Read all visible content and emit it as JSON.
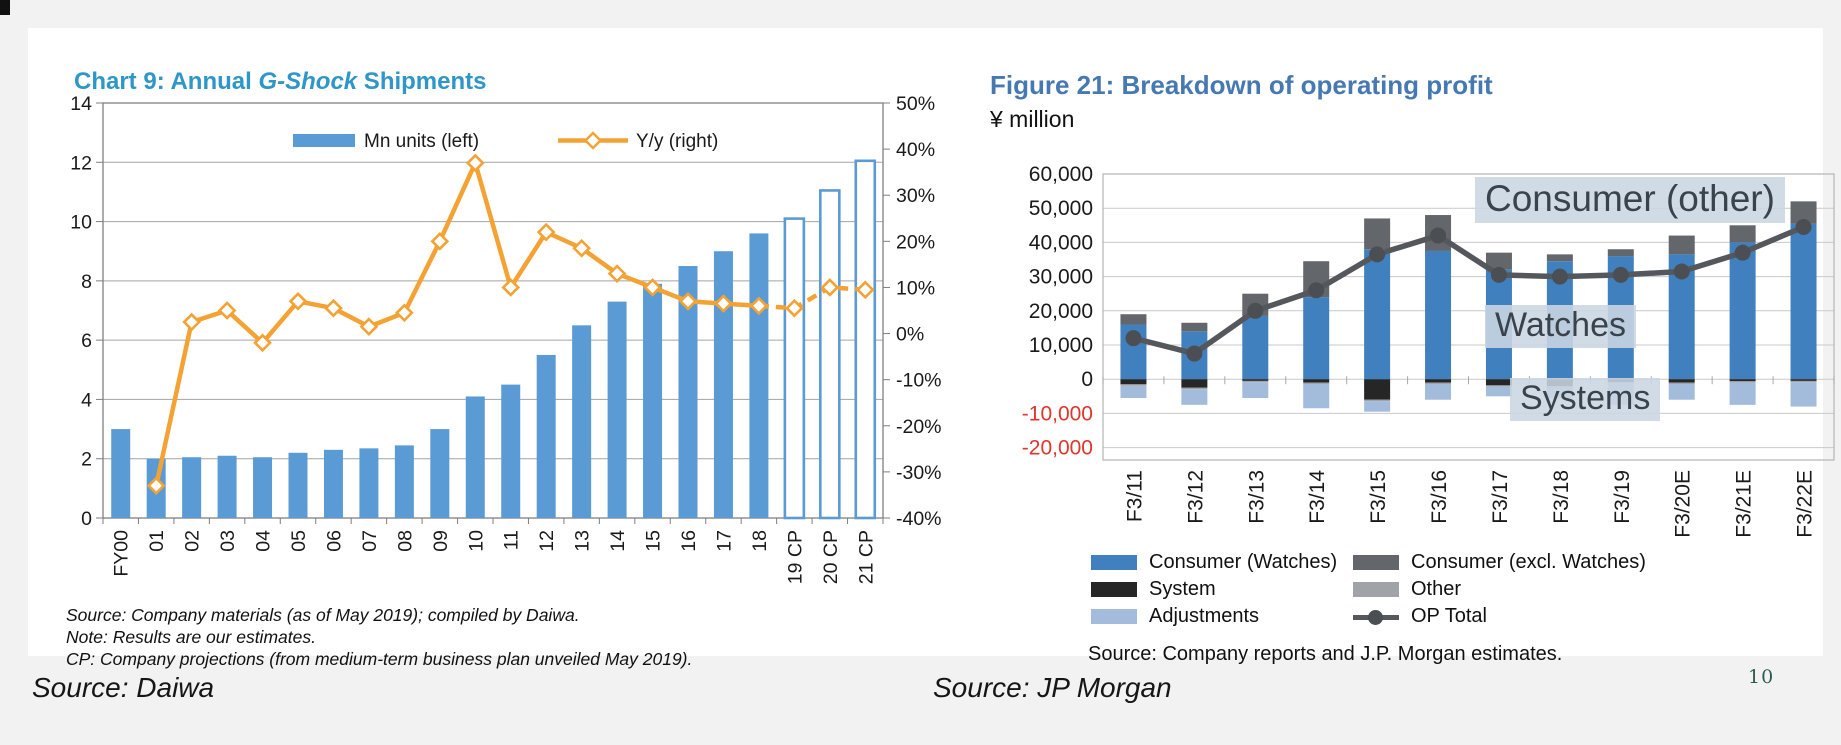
{
  "page": {
    "background": "#f2f2f3",
    "page_number": "10",
    "captions": {
      "left": "Source: Daiwa",
      "right": "Source: JP Morgan"
    }
  },
  "left_chart": {
    "title": {
      "prefix": "Chart 9: Annual ",
      "italic": "G-Shock",
      "suffix": " Shipments"
    },
    "title_color": "#2e96c8",
    "notes": [
      "Source: Company materials (as of May 2019); compiled by Daiwa.",
      "Note: Results are our estimates.",
      "CP: Company projections (from medium-term business plan unveiled May 2019)."
    ]
  },
  "right_chart": {
    "title": "Figure 21: Breakdown of operating profit",
    "unit_label": "¥ million",
    "annotations": [
      "Consumer (other)",
      "Watches",
      "Systems"
    ],
    "legend_columns": [
      [
        "Consumer (Watches)",
        "System",
        "Adjustments"
      ],
      [
        "Consumer (excl. Watches)",
        "Other",
        "OP Total"
      ]
    ],
    "source": "Source: Company reports and J.P. Morgan estimates."
  },
  "chart_data": [
    {
      "type": "bar+line",
      "title": "Chart 9: Annual G-Shock Shipments",
      "categories": [
        "FY00",
        "01",
        "02",
        "03",
        "04",
        "05",
        "06",
        "07",
        "08",
        "09",
        "10",
        "11",
        "12",
        "13",
        "14",
        "15",
        "16",
        "17",
        "18",
        "19 CP",
        "20 CP",
        "21 CP"
      ],
      "series": [
        {
          "name": "Mn units (left)",
          "type": "bar",
          "axis": "left",
          "color": "#5b9bd5",
          "values": [
            3.0,
            2.0,
            2.05,
            2.1,
            2.05,
            2.2,
            2.3,
            2.35,
            2.45,
            3.0,
            4.1,
            4.5,
            5.5,
            6.5,
            7.3,
            7.9,
            8.5,
            9.0,
            9.6,
            10.1,
            11.05,
            12.05
          ],
          "hollow_from_index": 19
        },
        {
          "name": "Y/y (right)",
          "type": "line",
          "axis": "right",
          "color": "#f4a233",
          "values": [
            null,
            -33,
            2.5,
            5,
            -2,
            7,
            5.5,
            1.5,
            4.5,
            20,
            37,
            10,
            22,
            18.5,
            13,
            10,
            7,
            6.5,
            6,
            5.5,
            10,
            9.5
          ],
          "dashed_from_index": 18
        }
      ],
      "left_axis": {
        "min": 0,
        "max": 14,
        "step": 2
      },
      "right_axis": {
        "min": -40,
        "max": 50,
        "step": 10,
        "format": "percent"
      },
      "grid": true,
      "legend_position": "top-inside"
    },
    {
      "type": "stacked-bar+line",
      "title": "Figure 21: Breakdown of operating profit",
      "ylabel": "¥ million",
      "categories": [
        "F3/11",
        "F3/12",
        "F3/13",
        "F3/14",
        "F3/15",
        "F3/16",
        "F3/17",
        "F3/18",
        "F3/19",
        "F3/20E",
        "F3/21E",
        "F3/22E"
      ],
      "series": [
        {
          "name": "Consumer (Watches)",
          "color": "#4080bf",
          "values": [
            16000,
            14000,
            18500,
            24000,
            38000,
            37500,
            32000,
            34500,
            36000,
            36500,
            40000,
            45500
          ]
        },
        {
          "name": "Consumer (excl. Watches)",
          "color": "#63676b",
          "values": [
            3000,
            2500,
            6500,
            10500,
            9000,
            10500,
            5000,
            2000,
            2000,
            5500,
            5000,
            6500
          ]
        },
        {
          "name": "System",
          "color": "#262626",
          "values": [
            -1500,
            -2500,
            -500,
            -1000,
            -6000,
            -1000,
            -1800,
            -2000,
            -800,
            -1000,
            -600,
            -500
          ]
        },
        {
          "name": "Other",
          "color": "#a0a3a7",
          "values": [
            -400,
            -400,
            -400,
            -400,
            -400,
            -400,
            -400,
            -400,
            -400,
            -400,
            -400,
            -400
          ]
        },
        {
          "name": "Adjustments",
          "color": "#a3bcdc",
          "values": [
            -3600,
            -4600,
            -4600,
            -7100,
            -3100,
            -4600,
            -2800,
            -3100,
            -6300,
            -4600,
            -6500,
            -7100
          ]
        }
      ],
      "line_series": {
        "name": "OP Total",
        "color": "#54585c",
        "values": [
          12000,
          7500,
          20000,
          26000,
          36500,
          42000,
          30500,
          30000,
          30500,
          31500,
          37000,
          44500
        ]
      },
      "y_axis": {
        "min": -20000,
        "max": 60000,
        "step": 10000,
        "negative_label_color": "#e0352b"
      },
      "grid": true,
      "legend_position": "bottom"
    }
  ]
}
